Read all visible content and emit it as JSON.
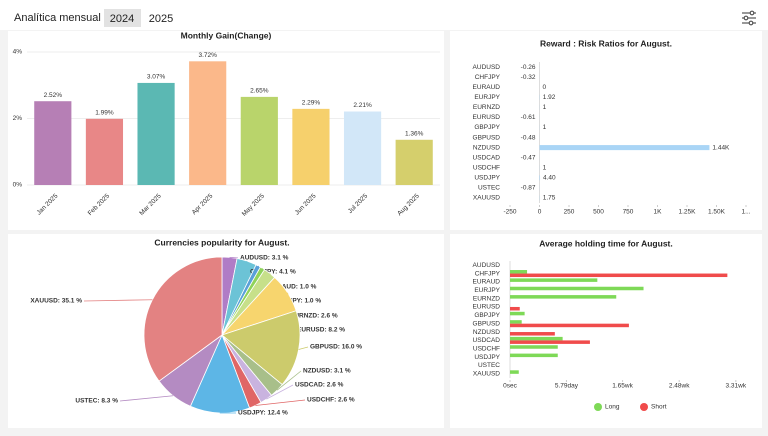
{
  "header": {
    "title": "Analítica mensual",
    "tabs": [
      "2024",
      "2025"
    ]
  },
  "chart_data": [
    {
      "type": "bar",
      "title": "Monthly Gain(Change)",
      "categories": [
        "Jan 2025",
        "Feb 2025",
        "Mar 2025",
        "Apr 2025",
        "May 2025",
        "Jun 2025",
        "Jul 2025",
        "Aug 2025"
      ],
      "values": [
        2.52,
        1.99,
        3.07,
        3.72,
        2.65,
        2.29,
        2.21,
        1.36
      ],
      "value_labels": [
        "2.52%",
        "1.99%",
        "3.07%",
        "3.72%",
        "2.65%",
        "2.29%",
        "2.21%",
        "1.36%"
      ],
      "colors": [
        "#b67fb5",
        "#e88787",
        "#5bb8b3",
        "#fbb88a",
        "#b9d46b",
        "#f6d06c",
        "#d2e7f8",
        "#d5cf6c"
      ],
      "ylim": [
        0,
        4.4
      ],
      "yticks": [
        {
          "value": 0,
          "label": "0%"
        },
        {
          "value": 2,
          "label": "2%"
        },
        {
          "value": 4,
          "label": "4%"
        }
      ],
      "grid": true
    },
    {
      "type": "hbar",
      "title": "Reward : Risk Ratios for August.",
      "categories": [
        "AUDUSD",
        "CHFJPY",
        "EURAUD",
        "EURJPY",
        "EURNZD",
        "EURUSD",
        "GBPJPY",
        "GBPUSD",
        "NZDUSD",
        "USDCAD",
        "USDCHF",
        "USDJPY",
        "USTEC",
        "XAUUSD"
      ],
      "values": [
        -0.26,
        -0.32,
        0,
        1.92,
        1,
        -0.61,
        1,
        -0.48,
        1440,
        -0.47,
        1,
        4.4,
        -0.87,
        1.75
      ],
      "value_labels": [
        "-0.26",
        "-0.32",
        "0",
        "1.92",
        "1",
        "-0.61",
        "1",
        "-0.48",
        "1.44K",
        "-0.47",
        "1",
        "4.40",
        "-0.87",
        "1.75"
      ],
      "color": "#a9d5f6",
      "xlim": [
        -250,
        1750
      ],
      "xticks": [
        -250,
        0,
        250,
        500,
        750,
        {
          "value": 1000,
          "label": "1K"
        },
        {
          "value": 1250,
          "label": "1.25K"
        },
        {
          "value": 1500,
          "label": "1.50K"
        },
        {
          "value": 1750,
          "label": "1..."
        }
      ]
    },
    {
      "type": "pie",
      "title": "Currencies popularity for August.",
      "values": [
        3.1,
        4.1,
        1.0,
        1.0,
        2.6,
        8.2,
        16.0,
        3.1,
        2.6,
        2.6,
        12.4,
        8.3,
        35.1
      ],
      "value_labels": [
        "AUDUSD: 3.1 %",
        "CHFJPY: 4.1 %",
        "EURAUD: 1.0 %",
        "EURJPY: 1.0 %",
        "EURNZD: 2.6 %",
        "EURUSD: 8.2 %",
        "GBPUSD: 16.0 %",
        "NZDUSD: 3.1 %",
        "USDCAD: 2.6 %",
        "USDCHF: 2.6 %",
        "USDJPY: 12.4 %",
        "USTEC: 8.3 %",
        "XAUUSD: 35.1 %"
      ],
      "colors": [
        "#b07cc6",
        "#6cc3d6",
        "#5aa0d8",
        "#8fd35a",
        "#c7e08a",
        "#f7d56e",
        "#cccb6c",
        "#a8bf8a",
        "#c9b3df",
        "#e06666",
        "#5db6e6",
        "#b48bc2",
        "#e38282"
      ]
    },
    {
      "type": "hbar",
      "title": "Average holding time for August.",
      "categories": [
        "AUDUSD",
        "CHFJPY",
        "EURAUD",
        "EURJPY",
        "EURNZD",
        "EURUSD",
        "GBPJPY",
        "GBPUSD",
        "NZDUSD",
        "USDCAD",
        "USDCHF",
        "USDJPY",
        "USTEC",
        "XAUUSD"
      ],
      "series": [
        {
          "name": "Long",
          "color": "#7ed957",
          "values": [
            0,
            1.75,
            8.96,
            13.7,
            10.9,
            0,
            1.5,
            1.2,
            0,
            5.4,
            4.9,
            4.9,
            0,
            0.9
          ]
        },
        {
          "name": "Short",
          "color": "#f04b4b",
          "values": [
            0,
            22.3,
            0,
            0,
            0,
            1.0,
            0,
            12.2,
            4.6,
            8.2,
            0,
            0,
            0,
            0
          ]
        }
      ],
      "xlim": [
        0,
        23.7
      ],
      "xticks": [
        {
          "value": 0,
          "label": "0sec"
        },
        {
          "value": 5.79,
          "label": "5.79day"
        },
        {
          "value": 11.55,
          "label": "1.65wk"
        },
        {
          "value": 17.36,
          "label": "2.48wk"
        },
        {
          "value": 23.17,
          "label": "3.31wk"
        }
      ],
      "legend": "bottom"
    }
  ]
}
